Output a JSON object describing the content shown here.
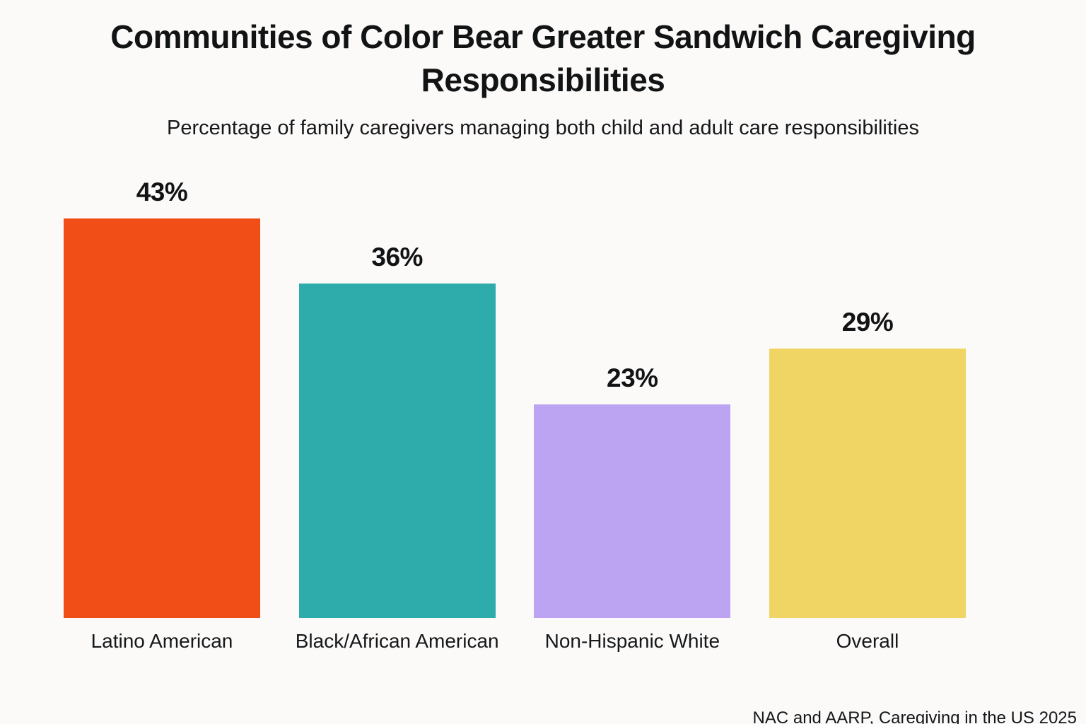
{
  "chart_data": {
    "type": "bar",
    "title": "Communities of Color Bear Greater Sandwich Caregiving Responsibilities",
    "subtitle": "Percentage of family caregivers managing both child and adult care responsibilities",
    "categories": [
      "Latino American",
      "Black/African American",
      "Non-Hispanic White",
      "Overall"
    ],
    "values": [
      43,
      36,
      23,
      29
    ],
    "value_labels": [
      "43%",
      "36%",
      "23%",
      "29%"
    ],
    "colors": [
      "#f04e16",
      "#2eacac",
      "#bca4f2",
      "#f0d565"
    ],
    "ylim": [
      0,
      45
    ],
    "grid": false,
    "legend": false,
    "data_labels": "above-bars",
    "source": "NAC and AARP, Caregiving in the US 2025"
  },
  "style": {
    "background": "#fbfaf8",
    "text_color": "#111315"
  }
}
